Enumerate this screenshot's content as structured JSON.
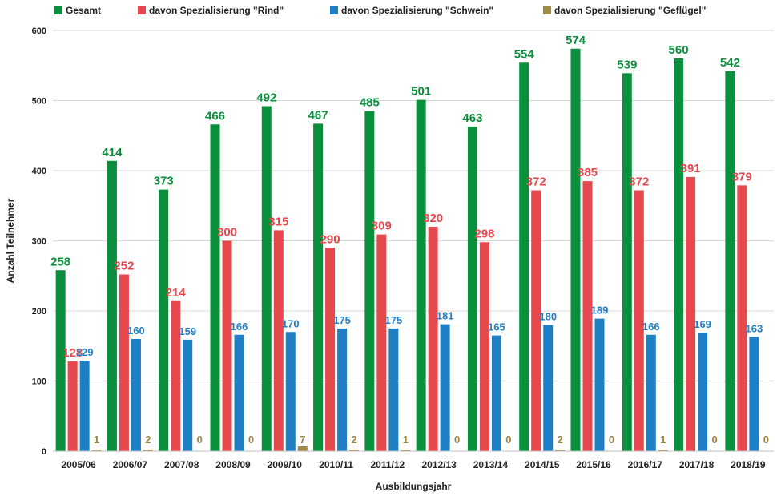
{
  "chart_data": {
    "type": "bar",
    "title": "",
    "xlabel": "Ausbildungsjahr",
    "ylabel": "Anzahl Teilnehmer",
    "ylim": [
      0,
      600
    ],
    "yticks": [
      0,
      100,
      200,
      300,
      400,
      500,
      600
    ],
    "grid": "horizontal",
    "legend_position": "top",
    "categories": [
      "2005/06",
      "2006/07",
      "2007/08",
      "2008/09",
      "2009/10",
      "2010/11",
      "2011/12",
      "2012/13",
      "2013/14",
      "2014/15",
      "2015/16",
      "2016/17",
      "2017/18",
      "2018/19"
    ],
    "series": [
      {
        "name": "Gesamt",
        "color": "#0a8f3c",
        "values": [
          258,
          414,
          373,
          466,
          492,
          467,
          485,
          501,
          463,
          554,
          574,
          539,
          560,
          542
        ]
      },
      {
        "name": "davon Spezialisierung \"Rind\"",
        "color": "#e5484d",
        "values": [
          128,
          252,
          214,
          300,
          315,
          290,
          309,
          320,
          298,
          372,
          385,
          372,
          391,
          379
        ]
      },
      {
        "name": "davon Spezialisierung \"Schwein\"",
        "color": "#1f7fc4",
        "values": [
          129,
          160,
          159,
          166,
          170,
          175,
          175,
          181,
          165,
          180,
          189,
          166,
          169,
          163
        ]
      },
      {
        "name": "davon Spezialisierung \"Geflügel\"",
        "color": "#a08a4a",
        "values": [
          1,
          2,
          0,
          0,
          7,
          2,
          1,
          0,
          0,
          2,
          0,
          1,
          0,
          0
        ]
      }
    ]
  }
}
